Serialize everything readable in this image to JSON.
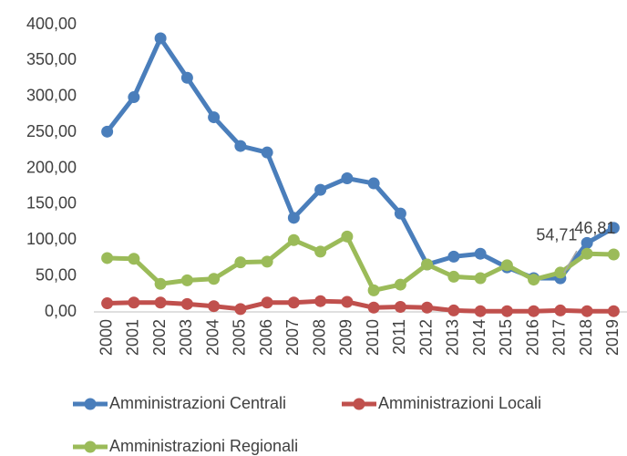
{
  "chart_data": {
    "type": "line",
    "categories": [
      "2000",
      "2001",
      "2002",
      "2003",
      "2004",
      "2005",
      "2006",
      "2007",
      "2008",
      "2009",
      "2010",
      "2011",
      "2012",
      "2013",
      "2014",
      "2015",
      "2016",
      "2017",
      "2018",
      "2019"
    ],
    "series": [
      {
        "name": "Amministrazioni Centrali",
        "color": "#4a7ebb",
        "values": [
          251,
          299,
          381,
          326,
          271,
          231,
          222,
          131,
          170,
          186,
          179,
          137,
          66,
          77,
          81,
          62,
          47,
          46.81,
          96,
          117
        ],
        "value_labels": [
          null,
          null,
          null,
          null,
          null,
          null,
          null,
          null,
          null,
          null,
          null,
          null,
          null,
          null,
          null,
          null,
          null,
          "46,81",
          null,
          null
        ]
      },
      {
        "name": "Amministrazioni Locali",
        "color": "#c0504d",
        "values": [
          12,
          13,
          13,
          11,
          8,
          4,
          13,
          13,
          15,
          14,
          6,
          7,
          6,
          2,
          1,
          1,
          1,
          2,
          1,
          1
        ]
      },
      {
        "name": "Amministrazioni Regionali",
        "color": "#9bbb59",
        "values": [
          75,
          74,
          39,
          44,
          46,
          69,
          70,
          100,
          84,
          105,
          30,
          38,
          66,
          49,
          47,
          65,
          45,
          54.71,
          81,
          80
        ],
        "value_labels": [
          null,
          null,
          null,
          null,
          null,
          null,
          null,
          null,
          null,
          null,
          null,
          null,
          null,
          null,
          null,
          null,
          null,
          "54,71",
          null,
          null
        ]
      }
    ],
    "ylim": [
      0,
      400
    ],
    "yticks": [
      {
        "value": 0,
        "label": "0,00"
      },
      {
        "value": 50,
        "label": "50,00"
      },
      {
        "value": 100,
        "label": "100,00"
      },
      {
        "value": 150,
        "label": "150,00"
      },
      {
        "value": 200,
        "label": "200,00"
      },
      {
        "value": 250,
        "label": "250,00"
      },
      {
        "value": 300,
        "label": "300,00"
      },
      {
        "value": 350,
        "label": "350,00"
      },
      {
        "value": 400,
        "label": "400,00"
      }
    ],
    "grid": false
  }
}
